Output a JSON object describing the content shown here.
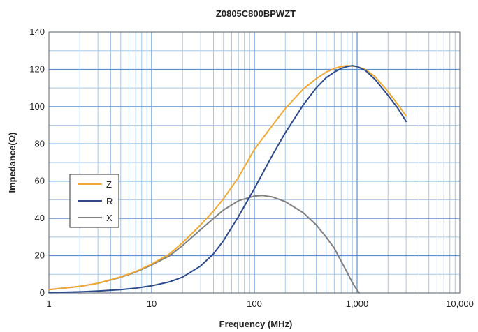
{
  "chart_data": {
    "type": "line",
    "title": "Z0805C800BPWZT",
    "xlabel": "Frequency (MHz)",
    "ylabel": "Impedance(Ω)",
    "x_scale": "log",
    "xlim": [
      1,
      10000
    ],
    "ylim": [
      0,
      140
    ],
    "x_ticks": [
      1,
      10,
      100,
      1000,
      10000
    ],
    "x_tick_labels": [
      "1",
      "10",
      "100",
      "1,000",
      "10,000"
    ],
    "y_ticks": [
      0,
      20,
      40,
      60,
      80,
      100,
      120,
      140
    ],
    "y_tick_labels": [
      "0",
      "20",
      "40",
      "60",
      "80",
      "100",
      "120",
      "140"
    ],
    "grid": true,
    "legend_position": "left-middle",
    "series": [
      {
        "name": "Z",
        "color": "#f0a830",
        "points": [
          [
            1,
            1.8
          ],
          [
            2,
            3.5
          ],
          [
            3,
            5.2
          ],
          [
            5,
            8.6
          ],
          [
            7,
            11.5
          ],
          [
            10,
            15.5
          ],
          [
            15,
            21
          ],
          [
            20,
            27
          ],
          [
            30,
            36.5
          ],
          [
            40,
            44
          ],
          [
            50,
            50.5
          ],
          [
            70,
            62
          ],
          [
            100,
            77
          ],
          [
            150,
            90
          ],
          [
            200,
            99
          ],
          [
            300,
            109.5
          ],
          [
            400,
            115
          ],
          [
            500,
            118.5
          ],
          [
            600,
            120.5
          ],
          [
            700,
            121.5
          ],
          [
            800,
            122
          ],
          [
            1000,
            121.5
          ],
          [
            1200,
            120
          ],
          [
            1500,
            116
          ],
          [
            2000,
            108
          ],
          [
            2500,
            101
          ],
          [
            3000,
            95
          ]
        ]
      },
      {
        "name": "R",
        "color": "#2c4a8c",
        "points": [
          [
            1,
            0.2
          ],
          [
            2,
            0.6
          ],
          [
            3,
            1.0
          ],
          [
            5,
            1.8
          ],
          [
            7,
            2.6
          ],
          [
            10,
            3.8
          ],
          [
            15,
            6
          ],
          [
            20,
            8.5
          ],
          [
            30,
            14.5
          ],
          [
            40,
            21
          ],
          [
            50,
            28
          ],
          [
            70,
            41
          ],
          [
            100,
            56
          ],
          [
            150,
            74
          ],
          [
            200,
            86
          ],
          [
            300,
            101
          ],
          [
            400,
            110
          ],
          [
            500,
            115.5
          ],
          [
            600,
            118.5
          ],
          [
            700,
            120.5
          ],
          [
            800,
            121.5
          ],
          [
            900,
            122
          ],
          [
            1000,
            121.5
          ],
          [
            1200,
            119.5
          ],
          [
            1500,
            114.5
          ],
          [
            2000,
            106
          ],
          [
            2500,
            99
          ],
          [
            3000,
            92
          ]
        ]
      },
      {
        "name": "X",
        "color": "#808080",
        "points": [
          [
            1,
            1.8
          ],
          [
            2,
            3.5
          ],
          [
            3,
            5.2
          ],
          [
            5,
            8.4
          ],
          [
            7,
            11.2
          ],
          [
            10,
            15
          ],
          [
            15,
            20
          ],
          [
            20,
            25.5
          ],
          [
            30,
            34
          ],
          [
            40,
            40
          ],
          [
            50,
            44.5
          ],
          [
            70,
            49.5
          ],
          [
            100,
            52
          ],
          [
            120,
            52.3
          ],
          [
            150,
            51.5
          ],
          [
            200,
            49
          ],
          [
            300,
            43
          ],
          [
            400,
            36.5
          ],
          [
            500,
            30
          ],
          [
            600,
            24
          ],
          [
            700,
            17
          ],
          [
            800,
            11
          ],
          [
            900,
            5.5
          ],
          [
            1000,
            1.5
          ],
          [
            1050,
            0
          ]
        ]
      }
    ]
  }
}
